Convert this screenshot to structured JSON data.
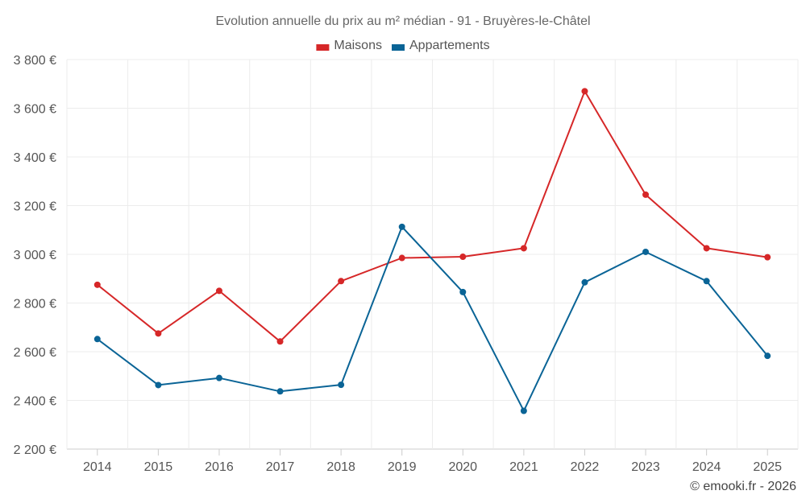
{
  "chart_data": {
    "type": "line",
    "title": "Evolution annuelle du prix au m² médian - 91 - Bruyères-le-Châtel",
    "categories": [
      "2014",
      "2015",
      "2016",
      "2017",
      "2018",
      "2019",
      "2020",
      "2021",
      "2022",
      "2023",
      "2024",
      "2025"
    ],
    "series": [
      {
        "name": "Maisons",
        "color": "#d62728",
        "values": [
          2875,
          2675,
          2850,
          2642,
          2890,
          2985,
          2990,
          3025,
          3670,
          3245,
          3025,
          2988
        ]
      },
      {
        "name": "Appartements",
        "color": "#0a6496",
        "values": [
          2652,
          2463,
          2492,
          2437,
          2464,
          3113,
          2845,
          2357,
          2885,
          3010,
          2890,
          2583
        ]
      }
    ],
    "y_ticks": [
      2200,
      2400,
      2600,
      2800,
      3000,
      3200,
      3400,
      3600,
      3800
    ],
    "y_tick_labels": [
      "2 200 €",
      "2 400 €",
      "2 600 €",
      "2 800 €",
      "3 000 €",
      "3 200 €",
      "3 400 €",
      "3 600 €",
      "3 800 €"
    ],
    "ylim": [
      2200,
      3800
    ],
    "xlabel": "",
    "ylabel": "",
    "grid": true,
    "legend_position": "top-center"
  },
  "credit": "© emooki.fr - 2026"
}
